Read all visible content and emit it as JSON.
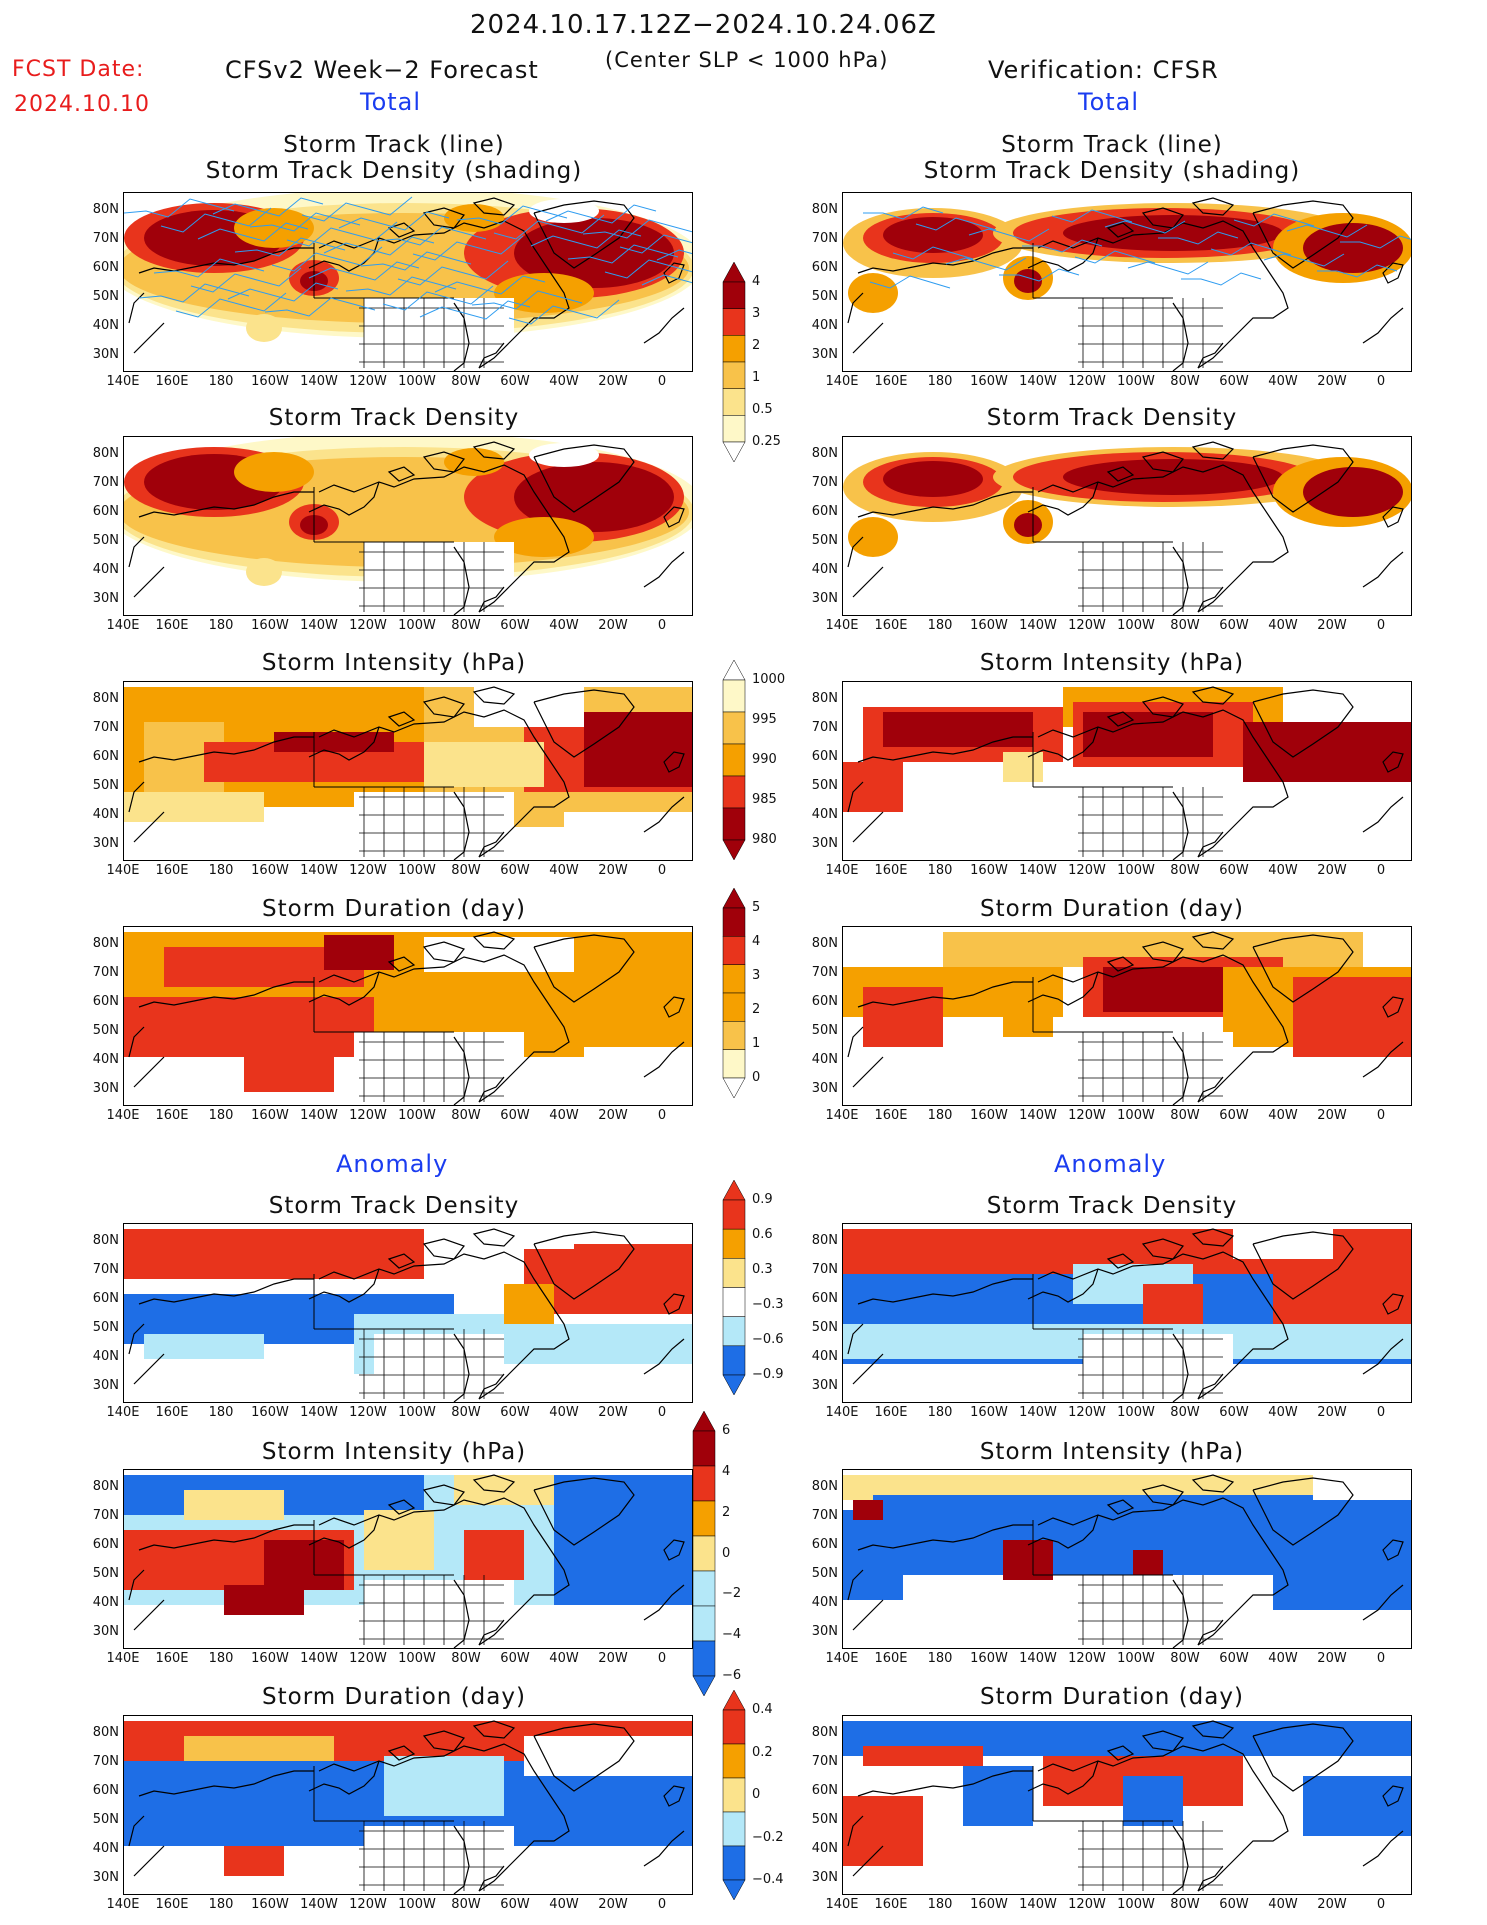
{
  "header": {
    "period": "2024.10.17.12Z−2024.10.24.06Z",
    "criterion": "(Center SLP < 1000 hPa)",
    "fcst_label": "FCST Date:",
    "fcst_date": "2024.10.10",
    "left_title": "CFSv2 Week−2 Forecast",
    "right_title": "Verification: CFSR"
  },
  "sections": {
    "total": "Total",
    "anomaly": "Anomaly"
  },
  "panel_titles": {
    "track": "Storm Track (line)",
    "track2": "Storm Track Density (shading)",
    "density": "Storm Track Density",
    "intensity": "Storm Intensity (hPa)",
    "duration": "Storm Duration (day)"
  },
  "lat_labels": [
    "80N",
    "70N",
    "60N",
    "50N",
    "40N",
    "30N"
  ],
  "lon_labels": [
    "140E",
    "160E",
    "180",
    "160W",
    "140W",
    "120W",
    "100W",
    "80W",
    "60W",
    "40W",
    "20W",
    "0"
  ],
  "colorbars": {
    "density": [
      "4",
      "3",
      "2",
      "1",
      "0.5",
      "0.25"
    ],
    "intensity": [
      "1000",
      "995",
      "990",
      "985",
      "980"
    ],
    "duration": [
      "5",
      "4",
      "3",
      "2",
      "1",
      "0"
    ],
    "anom_density": [
      "0.9",
      "0.6",
      "0.3",
      "−0.3",
      "−0.6",
      "−0.9"
    ],
    "anom_intensity": [
      "6",
      "4",
      "2",
      "0",
      "−2",
      "−4",
      "−6"
    ],
    "anom_duration": [
      "0.4",
      "0.2",
      "0",
      "−0.2",
      "−0.4"
    ]
  },
  "colors": {
    "dark_red": "#a0000a",
    "red": "#e8341c",
    "orange": "#f5a000",
    "light_orange": "#f8c24a",
    "yellow": "#fbe38c",
    "pale": "#fef8c8",
    "light_blue": "#b4e8f8",
    "blue": "#1e6ee6",
    "track_line": "#2e9cf0"
  }
}
